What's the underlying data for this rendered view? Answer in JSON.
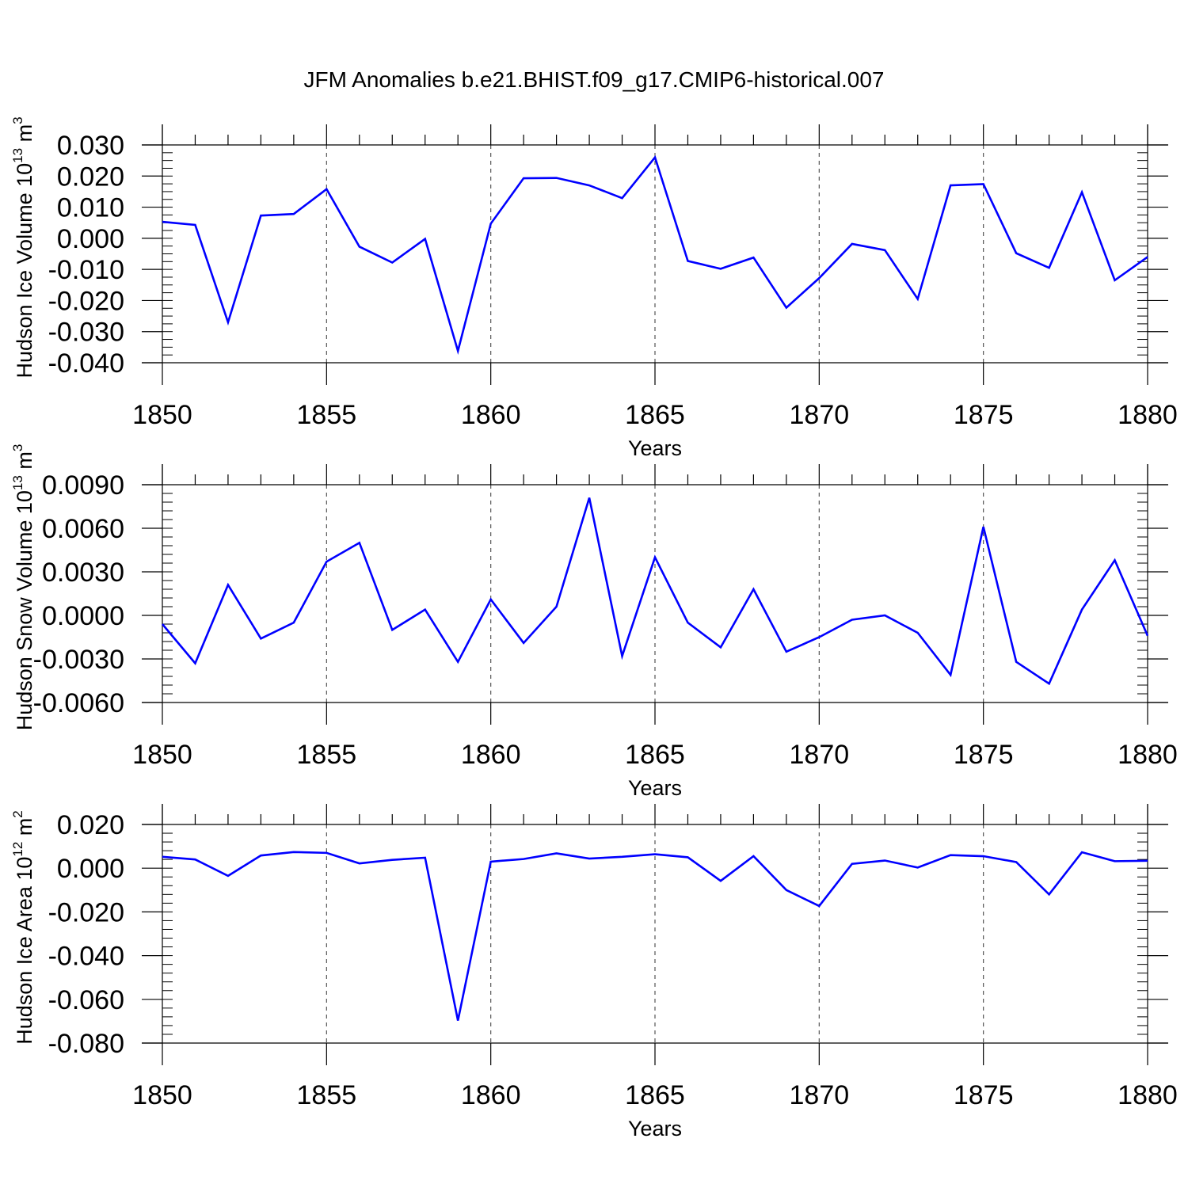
{
  "figure": {
    "title": "JFM Anomalies b.e21.BHIST.f09_g17.CMIP6-historical.007"
  },
  "style": {
    "line_color": "#0000ff",
    "axis_color": "#000000",
    "grid_color": "#555555"
  },
  "chart_data": [
    {
      "type": "line",
      "title": "",
      "xlabel": "Years",
      "ylabel": "Hudson Ice Volume 10",
      "ylabel_exp": "13",
      "ylabel_unit": "m",
      "ylabel_unit_exp": "3",
      "xlim": [
        1850,
        1880
      ],
      "ylim": [
        -0.04,
        0.03
      ],
      "yticks": [
        -0.04,
        -0.03,
        -0.02,
        -0.01,
        0.0,
        0.01,
        0.02,
        0.03
      ],
      "ytick_labels": [
        "-0.040",
        "-0.030",
        "-0.020",
        "-0.010",
        "0.000",
        "0.010",
        "0.020",
        "0.030"
      ],
      "yminor_step": 0.0025,
      "xticks": [
        1850,
        1855,
        1860,
        1865,
        1870,
        1875,
        1880
      ],
      "xtick_labels": [
        "1850",
        "1855",
        "1860",
        "1865",
        "1870",
        "1875",
        "1880"
      ],
      "grid": "vertical dashed at major x ticks",
      "x": [
        1850,
        1851,
        1852,
        1853,
        1854,
        1855,
        1856,
        1857,
        1858,
        1859,
        1860,
        1861,
        1862,
        1863,
        1864,
        1865,
        1866,
        1867,
        1868,
        1869,
        1870,
        1871,
        1872,
        1873,
        1874,
        1875,
        1876,
        1877,
        1878,
        1879,
        1880
      ],
      "series": [
        {
          "values": [
            0.0053,
            0.0043,
            -0.027,
            0.0073,
            0.0078,
            0.0158,
            -0.0027,
            -0.0078,
            -0.0002,
            -0.0362,
            0.0047,
            0.0193,
            0.0194,
            0.017,
            0.0129,
            0.026,
            -0.0073,
            -0.0098,
            -0.0062,
            -0.0223,
            -0.0128,
            -0.0018,
            -0.0038,
            -0.0195,
            0.017,
            0.0174,
            -0.0048,
            -0.0095,
            0.0148,
            -0.0135,
            -0.006
          ]
        }
      ]
    },
    {
      "type": "line",
      "title": "",
      "xlabel": "Years",
      "ylabel": "Hudson Snow Volume 10",
      "ylabel_exp": "13",
      "ylabel_unit": "m",
      "ylabel_unit_exp": "3",
      "xlim": [
        1850,
        1880
      ],
      "ylim": [
        -0.006,
        0.009
      ],
      "yticks": [
        -0.006,
        -0.003,
        0.0,
        0.003,
        0.006,
        0.009
      ],
      "ytick_labels": [
        "-0.0060",
        "-0.0030",
        "0.0000",
        "0.0030",
        "0.0060",
        "0.0090"
      ],
      "yminor_step": 0.0006,
      "xticks": [
        1850,
        1855,
        1860,
        1865,
        1870,
        1875,
        1880
      ],
      "xtick_labels": [
        "1850",
        "1855",
        "1860",
        "1865",
        "1870",
        "1875",
        "1880"
      ],
      "grid": "vertical dashed at major x ticks",
      "x": [
        1850,
        1851,
        1852,
        1853,
        1854,
        1855,
        1856,
        1857,
        1858,
        1859,
        1860,
        1861,
        1862,
        1863,
        1864,
        1865,
        1866,
        1867,
        1868,
        1869,
        1870,
        1871,
        1872,
        1873,
        1874,
        1875,
        1876,
        1877,
        1878,
        1879,
        1880
      ],
      "series": [
        {
          "values": [
            -0.0006,
            -0.0033,
            0.0021,
            -0.0016,
            -0.0005,
            0.0037,
            0.005,
            -0.001,
            0.0004,
            -0.0032,
            0.0011,
            -0.0019,
            0.0006,
            0.0081,
            -0.0028,
            0.004,
            -0.0005,
            -0.0022,
            0.0018,
            -0.0025,
            -0.0015,
            -0.0003,
            0.0,
            -0.0012,
            -0.0041,
            0.0061,
            -0.0032,
            -0.0047,
            0.0004,
            0.0038,
            -0.0014
          ]
        }
      ]
    },
    {
      "type": "line",
      "title": "",
      "xlabel": "Years",
      "ylabel": "Hudson Ice Area 10",
      "ylabel_exp": "12",
      "ylabel_unit": "m",
      "ylabel_unit_exp": "2",
      "xlim": [
        1850,
        1880
      ],
      "ylim": [
        -0.08,
        0.02
      ],
      "yticks": [
        -0.08,
        -0.06,
        -0.04,
        -0.02,
        0.0,
        0.02
      ],
      "ytick_labels": [
        "-0.080",
        "-0.060",
        "-0.040",
        "-0.020",
        "0.000",
        "0.020"
      ],
      "yminor_step": 0.004,
      "xticks": [
        1850,
        1855,
        1860,
        1865,
        1870,
        1875,
        1880
      ],
      "xtick_labels": [
        "1850",
        "1855",
        "1860",
        "1865",
        "1870",
        "1875",
        "1880"
      ],
      "grid": "vertical dashed at major x ticks",
      "x": [
        1850,
        1851,
        1852,
        1853,
        1854,
        1855,
        1856,
        1857,
        1858,
        1859,
        1860,
        1861,
        1862,
        1863,
        1864,
        1865,
        1866,
        1867,
        1868,
        1869,
        1870,
        1871,
        1872,
        1873,
        1874,
        1875,
        1876,
        1877,
        1878,
        1879,
        1880
      ],
      "series": [
        {
          "values": [
            0.0052,
            0.004,
            -0.0035,
            0.0058,
            0.0074,
            0.007,
            0.0022,
            0.0038,
            0.0048,
            -0.0697,
            0.003,
            0.0042,
            0.0068,
            0.0044,
            0.0052,
            0.0064,
            0.005,
            -0.0058,
            0.0055,
            -0.01,
            -0.0173,
            0.002,
            0.0035,
            0.0003,
            0.006,
            0.0055,
            0.0028,
            -0.012,
            0.0073,
            0.0032,
            0.0034
          ]
        }
      ]
    }
  ]
}
